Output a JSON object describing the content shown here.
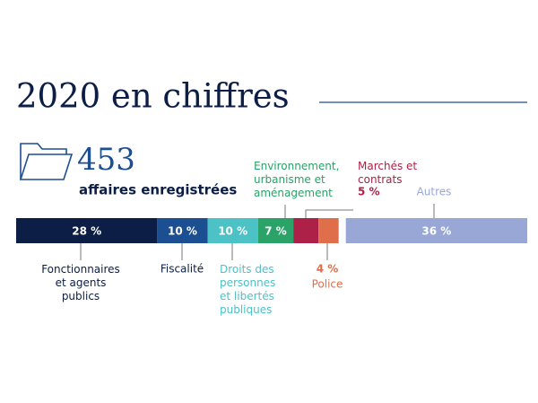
{
  "chart_data": {
    "type": "stacked-bar",
    "title": "2020 en chiffres",
    "total": 453,
    "total_label": "affaires enregistrées",
    "categories": [
      "Fonctionnaires\net agents\npublics",
      "Fiscalité",
      "Droits des\npersonnes\net libertés\npubliques",
      "Environnement,\nurbanisme et\naménagement",
      "Marchés et\ncontrats",
      "Police",
      "Autres"
    ],
    "values": [
      28,
      10,
      10,
      7,
      5,
      4,
      36
    ],
    "value_labels": [
      "28 %",
      "10 %",
      "10 %",
      "7 %",
      "5 %",
      "4 %",
      "36 %"
    ],
    "colors": [
      "#0c1e46",
      "#1c4e92",
      "#4cc1c6",
      "#2aa268",
      "#ad2148",
      "#df6e4b",
      "#99a7d6"
    ],
    "xlim": [
      0,
      100
    ]
  }
}
